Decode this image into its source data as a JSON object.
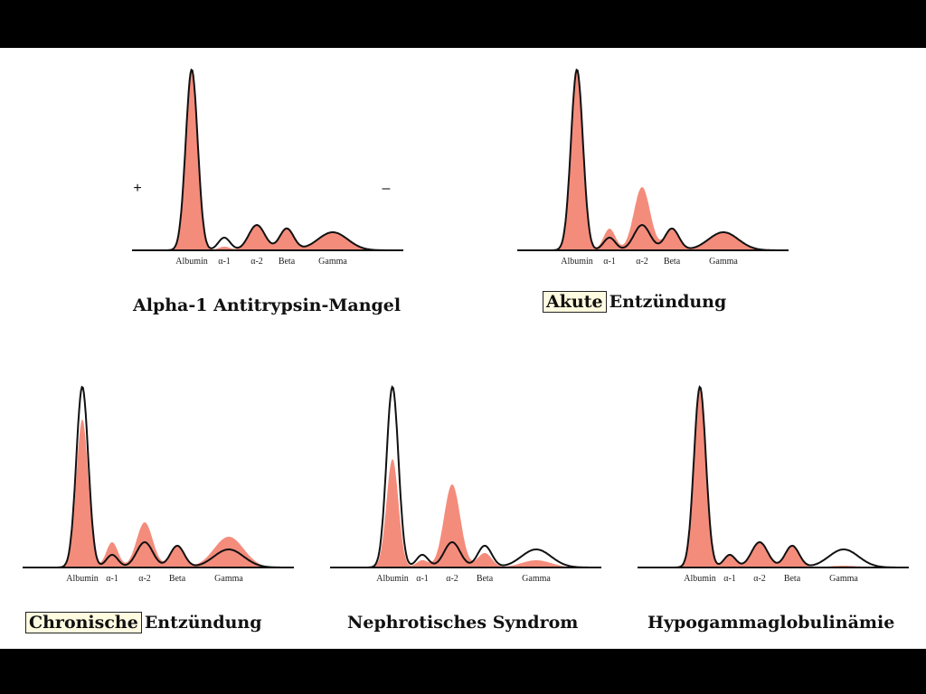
{
  "colors": {
    "fill": "#f48c7c",
    "outline": "#111111",
    "background": "#ffffff",
    "highlight": "#fffbe0"
  },
  "panel1": {
    "caption": "Alpha-1 Antitrypsin-Mangel",
    "plus": "+",
    "minus": "–"
  },
  "panel2": {
    "caption_highlight": "Akute",
    "caption_rest": "Entzündung"
  },
  "panel3": {
    "caption_highlight": "Chronische",
    "caption_rest": "Entzündung"
  },
  "panel4": {
    "caption": "Nephrotisches Syndrom"
  },
  "panel5": {
    "caption": "Hypogammaglobulinämie"
  },
  "chart_data": [
    {
      "type": "area",
      "title": "Alpha-1 Antitrypsin-Mangel",
      "categories": [
        "Albumin",
        "α-1",
        "α-2",
        "Beta",
        "Gamma"
      ],
      "series": [
        {
          "style": "outline",
          "values": [
            100,
            7,
            14,
            12,
            10
          ]
        },
        {
          "style": "fill",
          "values": [
            100,
            2,
            14,
            12,
            10
          ]
        }
      ]
    },
    {
      "type": "area",
      "title": "Akute Entzündung",
      "categories": [
        "Albumin",
        "α-1",
        "α-2",
        "Beta",
        "Gamma"
      ],
      "series": [
        {
          "style": "outline",
          "values": [
            100,
            7,
            14,
            12,
            10
          ]
        },
        {
          "style": "fill",
          "values": [
            100,
            12,
            35,
            12,
            10
          ]
        }
      ]
    },
    {
      "type": "area",
      "title": "Chronische Entzündung",
      "categories": [
        "Albumin",
        "α-1",
        "α-2",
        "Beta",
        "Gamma"
      ],
      "series": [
        {
          "style": "outline",
          "values": [
            100,
            7,
            14,
            12,
            10
          ]
        },
        {
          "style": "fill",
          "values": [
            82,
            14,
            25,
            12,
            17
          ]
        }
      ]
    },
    {
      "type": "area",
      "title": "Nephrotisches Syndrom",
      "categories": [
        "Albumin",
        "α-1",
        "α-2",
        "Beta",
        "Gamma"
      ],
      "series": [
        {
          "style": "outline",
          "values": [
            100,
            7,
            14,
            12,
            10
          ]
        },
        {
          "style": "fill",
          "values": [
            60,
            4,
            46,
            8,
            4
          ]
        }
      ]
    },
    {
      "type": "area",
      "title": "Hypogammaglobulinämie",
      "categories": [
        "Albumin",
        "α-1",
        "α-2",
        "Beta",
        "Gamma"
      ],
      "series": [
        {
          "style": "outline",
          "values": [
            100,
            7,
            14,
            12,
            10
          ]
        },
        {
          "style": "fill",
          "values": [
            100,
            7,
            14,
            12,
            1
          ]
        }
      ]
    }
  ]
}
